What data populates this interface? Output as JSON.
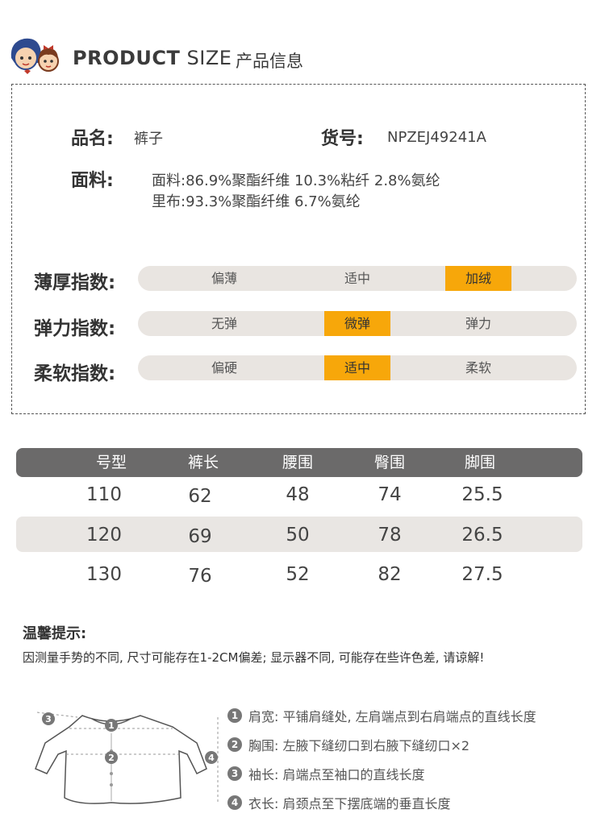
{
  "header": {
    "title_en_bold": "PRODUCT",
    "title_en_light": " SIZE",
    "title_zh": "产品信息",
    "logo_icon": "two-kids-faces-logo"
  },
  "info": {
    "name_label": "品名:",
    "name_value": "裤子",
    "sku_label": "货号:",
    "sku_value": "NPZEJ49241A",
    "fabric_label": "面料:",
    "fabric_line1": "面料:86.9%聚酯纤维 10.3%粘纤 2.8%氨纶",
    "fabric_line2": "里布:93.3%聚酯纤维 6.7%氨纶"
  },
  "scales": [
    {
      "label": "薄厚指数:",
      "options": [
        "偏薄",
        "适中",
        "加绒"
      ],
      "selected": 2
    },
    {
      "label": "弹力指数:",
      "options": [
        "无弹",
        "微弹",
        "弹力"
      ],
      "selected": 1
    },
    {
      "label": "柔软指数:",
      "options": [
        "偏硬",
        "适中",
        "柔软"
      ],
      "selected": 1
    }
  ],
  "size_table": {
    "headers": [
      "号型",
      "裤长",
      "腰围",
      "臀围",
      "脚围"
    ],
    "rows": [
      [
        "110",
        "62",
        "48",
        "74",
        "25.5"
      ],
      [
        "120",
        "69",
        "50",
        "78",
        "26.5"
      ],
      [
        "130",
        "76",
        "52",
        "82",
        "27.5"
      ]
    ]
  },
  "tips": {
    "title": "温馨提示:",
    "text": "因测量手势的不同, 尺寸可能存在1-2CM偏差; 显示器不同, 可能存在些许色差, 请谅解!"
  },
  "measure": {
    "items": [
      {
        "num": "1",
        "text": "肩宽: 平铺肩缝处, 左肩端点到右肩端点的直线长度"
      },
      {
        "num": "2",
        "text": "胸围: 左腋下缝纫口到右腋下缝纫口×2"
      },
      {
        "num": "3",
        "text": "袖长: 肩端点至袖口的直线长度"
      },
      {
        "num": "4",
        "text": "衣长: 肩颈点至下摆底端的垂直长度"
      }
    ],
    "diagram_icon": "shirt-measure-diagram"
  },
  "colors": {
    "highlight": "#f7a70a",
    "bar_bg": "#e9e5e1",
    "header_row": "#6b6a6a",
    "alt_row": "#e9e6e3"
  }
}
